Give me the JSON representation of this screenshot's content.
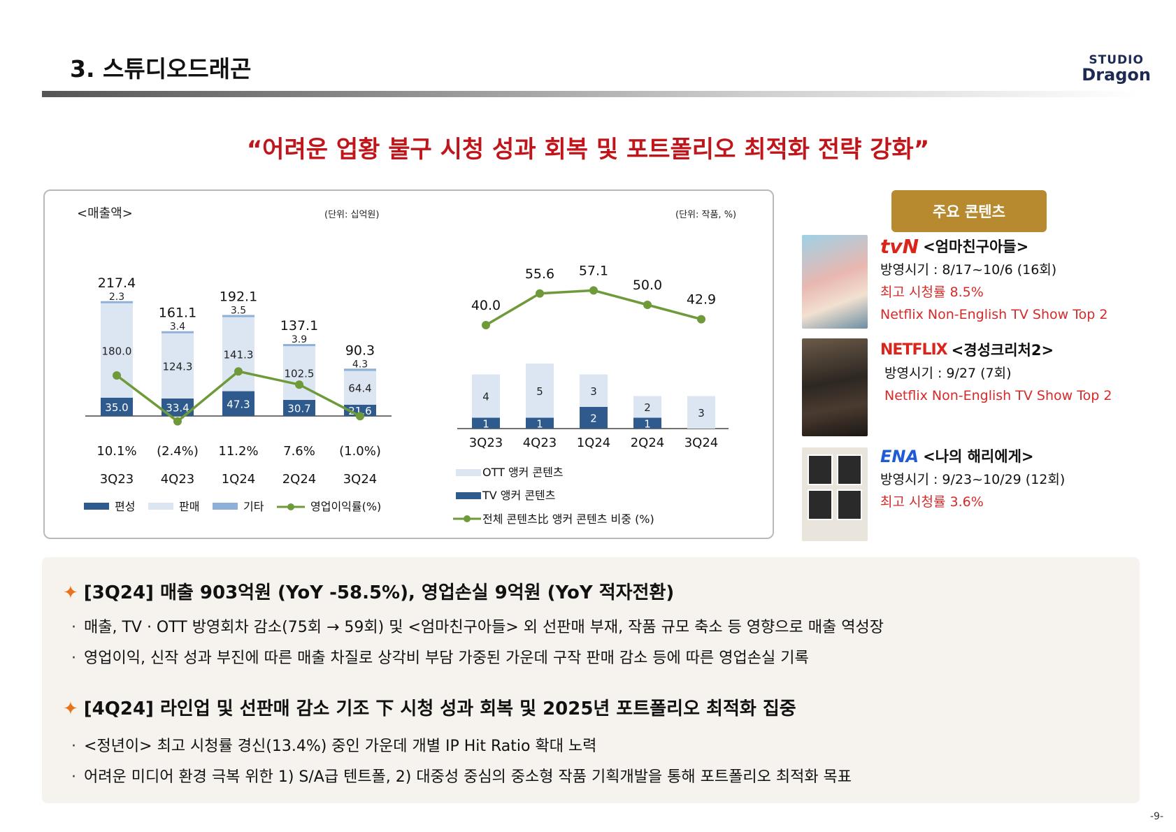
{
  "header": {
    "section_title": "3. 스튜디오드래곤",
    "logo_line1": "STUDIO",
    "logo_line2": "Dragon"
  },
  "headline": "“어려운 업황 불구 시청 성과 회복 및 포트폴리오 최적화 전략 강화”",
  "chart_data": [
    {
      "type": "bar",
      "stacked": true,
      "title": "<매출액>",
      "unit": "(단위: 십억원)",
      "categories": [
        "3Q23",
        "4Q23",
        "1Q24",
        "2Q24",
        "3Q24"
      ],
      "series": [
        {
          "name": "편성",
          "values": [
            35.0,
            33.4,
            47.3,
            30.7,
            21.6
          ],
          "color": "#2e5a8e"
        },
        {
          "name": "판매",
          "values": [
            180.0,
            124.3,
            141.3,
            102.5,
            64.4
          ],
          "color": "#dbe6f2"
        },
        {
          "name": "기타",
          "values": [
            2.3,
            3.4,
            3.5,
            3.9,
            4.3
          ],
          "color": "#8fb0d6"
        }
      ],
      "totals": [
        217.4,
        161.1,
        192.1,
        137.1,
        90.3
      ],
      "totals_highlight_color": "#d62a2a",
      "line_series": {
        "name": "영업이익률(%)",
        "values": [
          10.1,
          -2.4,
          11.2,
          7.6,
          -1.0
        ],
        "labels": [
          "10.1%",
          "(2.4%)",
          "11.2%",
          "7.6%",
          "(1.0%)"
        ],
        "color": "#6e9a3a"
      },
      "legend": [
        "편성",
        "판매",
        "기타",
        "영업이익률(%)"
      ],
      "legend_position": "bottom",
      "grid": false
    },
    {
      "type": "bar",
      "stacked": true,
      "unit": "(단위: 작품, %)",
      "categories": [
        "3Q23",
        "4Q23",
        "1Q24",
        "2Q24",
        "3Q24"
      ],
      "series": [
        {
          "name": "TV 앵커 콘텐츠",
          "values": [
            1,
            1,
            2,
            1,
            0
          ],
          "color": "#2e5a8e"
        },
        {
          "name": "OTT 앵커 콘텐츠",
          "values": [
            4,
            5,
            3,
            2,
            3
          ],
          "color": "#dbe6f2"
        }
      ],
      "line_series": {
        "name": "전체 콘텐츠比 앵커 콘텐츠 비중 (%)",
        "values": [
          40.0,
          55.6,
          57.1,
          50.0,
          42.9
        ],
        "labels": [
          "40.0",
          "55.6",
          "57.1",
          "50.0",
          "42.9"
        ],
        "color": "#6e9a3a",
        "last_highlight_color": "#d62a2a"
      },
      "legend": [
        "OTT 앵커 콘텐츠",
        "TV 앵커 콘텐츠",
        "전체 콘텐츠比 앵커 콘텐츠 비중 (%)"
      ],
      "legend_position": "bottom",
      "grid": false
    }
  ],
  "contents": {
    "badge": "주요 콘텐츠",
    "items": [
      {
        "brand": "tvN",
        "title": "<엄마친구아들>",
        "period": "방영시기 : 8/17~10/6 (16회)",
        "rating": "최고 시청률 8.5%",
        "note": "Netflix Non-English TV Show Top 2",
        "icon": "poster-image"
      },
      {
        "brand": "NETFLIX",
        "title": "<경성크리처2>",
        "period": "방영시기 : 9/27 (7회)",
        "note": "Netflix Non-English TV Show Top 2",
        "icon": "poster-image"
      },
      {
        "brand": "ENA",
        "title": "<나의 해리에게>",
        "period": "방영시기 : 9/23~10/29 (12회)",
        "rating": "최고 시청률 3.6%",
        "icon": "poster-image"
      }
    ]
  },
  "summary": {
    "blocks": [
      {
        "heading": "[3Q24] 매출 903억원 (YoY -58.5%), 영업손실 9억원 (YoY 적자전환)",
        "bullets": [
          "매출, TV · OTT 방영회차 감소(75회 → 59회) 및 <엄마친구아들> 외 선판매 부재, 작품 규모 축소 등 영향으로 매출 역성장",
          "영업이익, 신작 성과 부진에 따른 매출 차질로 상각비 부담 가중된 가운데 구작 판매 감소 등에 따른 영업손실 기록"
        ]
      },
      {
        "heading": "[4Q24] 라인업 및 선판매 감소 기조 下 시청 성과 회복 및 2025년 포트폴리오 최적화 집중",
        "bullets": [
          "<정년이> 최고 시청률 경신(13.4%) 중인 가운데 개별 IP Hit Ratio 확대 노력",
          "어려운 미디어 환경 극복 위한 1) S/A급 텐트폴, 2) 대중성 중심의 중소형 작품 기획개발을 통해 포트폴리오 최적화 목표"
        ]
      }
    ],
    "star_icon": "orange-sparkle-icon",
    "bullet_glyph": "·"
  },
  "page_number": "-9-"
}
